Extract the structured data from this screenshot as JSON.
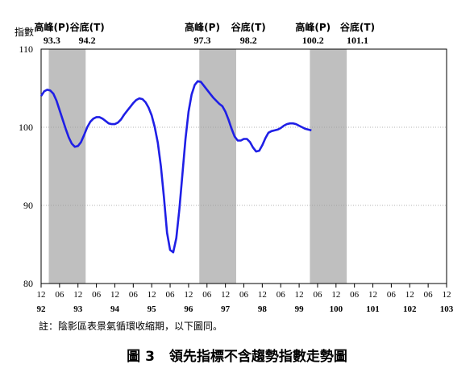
{
  "chart_data": {
    "type": "line",
    "ylabel": "指數",
    "ylim": [
      80,
      110
    ],
    "yticks": [
      80,
      90,
      100,
      110
    ],
    "xlim": [
      0,
      132
    ],
    "x_ticks": [
      {
        "x": 0,
        "label": "12"
      },
      {
        "x": 6,
        "label": "06"
      },
      {
        "x": 12,
        "label": "12"
      },
      {
        "x": 18,
        "label": "06"
      },
      {
        "x": 24,
        "label": "12"
      },
      {
        "x": 30,
        "label": "06"
      },
      {
        "x": 36,
        "label": "12"
      },
      {
        "x": 42,
        "label": "06"
      },
      {
        "x": 48,
        "label": "12"
      },
      {
        "x": 54,
        "label": "06"
      },
      {
        "x": 60,
        "label": "12"
      },
      {
        "x": 66,
        "label": "06"
      },
      {
        "x": 72,
        "label": "12"
      },
      {
        "x": 78,
        "label": "06"
      },
      {
        "x": 84,
        "label": "12"
      },
      {
        "x": 90,
        "label": "06"
      },
      {
        "x": 96,
        "label": "12"
      },
      {
        "x": 102,
        "label": "06"
      },
      {
        "x": 108,
        "label": "12"
      },
      {
        "x": 114,
        "label": "06"
      },
      {
        "x": 120,
        "label": "12"
      },
      {
        "x": 126,
        "label": "06"
      },
      {
        "x": 132,
        "label": "12"
      }
    ],
    "year_labels": [
      {
        "x": 0,
        "label": "92"
      },
      {
        "x": 12,
        "label": "93"
      },
      {
        "x": 24,
        "label": "94"
      },
      {
        "x": 36,
        "label": "95"
      },
      {
        "x": 48,
        "label": "96"
      },
      {
        "x": 60,
        "label": "97"
      },
      {
        "x": 72,
        "label": "98"
      },
      {
        "x": 84,
        "label": "99"
      },
      {
        "x": 96,
        "label": "100"
      },
      {
        "x": 108,
        "label": "101"
      },
      {
        "x": 120,
        "label": "102"
      },
      {
        "x": 132,
        "label": "103"
      }
    ],
    "shaded_periods": [
      {
        "start": 2.5,
        "end": 14.5
      },
      {
        "start": 51.5,
        "end": 63.5
      },
      {
        "start": 87.5,
        "end": 99.5
      }
    ],
    "turning_points": [
      {
        "x": 3.5,
        "type_label": "高峰(P)",
        "date": "93.3"
      },
      {
        "x": 15,
        "type_label": "谷底(T)",
        "date": "94.2"
      },
      {
        "x": 52.5,
        "type_label": "高峰(P)",
        "date": "97.3"
      },
      {
        "x": 67.5,
        "type_label": "谷底(T)",
        "date": "98.2"
      },
      {
        "x": 88.5,
        "type_label": "高峰(P)",
        "date": "100.2"
      },
      {
        "x": 103,
        "type_label": "谷底(T)",
        "date": "101.1"
      }
    ],
    "series": [
      {
        "color": "#1f1fe6",
        "points": [
          [
            0,
            104.0
          ],
          [
            1,
            104.6
          ],
          [
            2,
            104.8
          ],
          [
            3,
            104.7
          ],
          [
            4,
            104.3
          ],
          [
            5,
            103.4
          ],
          [
            6,
            102.2
          ],
          [
            7,
            101.0
          ],
          [
            8,
            99.8
          ],
          [
            9,
            98.7
          ],
          [
            10,
            97.9
          ],
          [
            11,
            97.5
          ],
          [
            12,
            97.6
          ],
          [
            13,
            98.1
          ],
          [
            14,
            99.0
          ],
          [
            15,
            100.0
          ],
          [
            16,
            100.7
          ],
          [
            17,
            101.1
          ],
          [
            18,
            101.3
          ],
          [
            19,
            101.3
          ],
          [
            20,
            101.1
          ],
          [
            21,
            100.8
          ],
          [
            22,
            100.5
          ],
          [
            23,
            100.4
          ],
          [
            24,
            100.4
          ],
          [
            25,
            100.6
          ],
          [
            26,
            101.0
          ],
          [
            27,
            101.6
          ],
          [
            28,
            102.1
          ],
          [
            29,
            102.6
          ],
          [
            30,
            103.1
          ],
          [
            31,
            103.5
          ],
          [
            32,
            103.7
          ],
          [
            33,
            103.6
          ],
          [
            34,
            103.2
          ],
          [
            35,
            102.5
          ],
          [
            36,
            101.5
          ],
          [
            37,
            100.0
          ],
          [
            38,
            98.0
          ],
          [
            39,
            95.0
          ],
          [
            40,
            91.0
          ],
          [
            41,
            86.5
          ],
          [
            42,
            84.3
          ],
          [
            43,
            84.0
          ],
          [
            44,
            85.8
          ],
          [
            45,
            89.5
          ],
          [
            46,
            94.0
          ],
          [
            47,
            98.5
          ],
          [
            48,
            102.0
          ],
          [
            49,
            104.2
          ],
          [
            50,
            105.4
          ],
          [
            51,
            105.9
          ],
          [
            52,
            105.8
          ],
          [
            53,
            105.3
          ],
          [
            54,
            104.8
          ],
          [
            55,
            104.3
          ],
          [
            56,
            103.8
          ],
          [
            57,
            103.4
          ],
          [
            58,
            103.0
          ],
          [
            59,
            102.7
          ],
          [
            60,
            102.0
          ],
          [
            61,
            101.0
          ],
          [
            62,
            99.8
          ],
          [
            63,
            98.8
          ],
          [
            64,
            98.3
          ],
          [
            65,
            98.3
          ],
          [
            66,
            98.5
          ],
          [
            67,
            98.5
          ],
          [
            68,
            98.1
          ],
          [
            69,
            97.4
          ],
          [
            70,
            96.9
          ],
          [
            71,
            97.0
          ],
          [
            72,
            97.7
          ],
          [
            73,
            98.6
          ],
          [
            74,
            99.3
          ],
          [
            75,
            99.5
          ],
          [
            76,
            99.6
          ],
          [
            77,
            99.7
          ],
          [
            78,
            99.9
          ],
          [
            79,
            100.2
          ],
          [
            80,
            100.4
          ],
          [
            81,
            100.5
          ],
          [
            82,
            100.5
          ],
          [
            83,
            100.4
          ],
          [
            84,
            100.2
          ],
          [
            85,
            100.0
          ],
          [
            86,
            99.8
          ],
          [
            87,
            99.7
          ],
          [
            88,
            99.6
          ]
        ]
      }
    ]
  },
  "footnote": "註：陰影區表景氣循環收縮期，以下圖同。",
  "caption": {
    "figure_no": "圖 3",
    "title": "領先指標不含趨勢指數走勢圖"
  }
}
